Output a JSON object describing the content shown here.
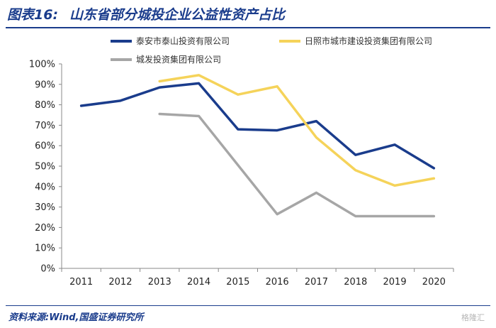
{
  "figure": {
    "label": "图表16:",
    "title": "山东省部分城投企业公益性资产占比"
  },
  "source": "资料来源:Wind,国盛证券研究所",
  "watermark": "格隆汇",
  "chart_data": {
    "type": "line",
    "title": "山东省部分城投企业公益性资产占比",
    "xlabel": "",
    "ylabel": "",
    "categories": [
      "2011",
      "2012",
      "2013",
      "2014",
      "2015",
      "2016",
      "2017",
      "2018",
      "2019",
      "2020"
    ],
    "ylim": [
      0,
      100
    ],
    "y_ticks": [
      0,
      10,
      20,
      30,
      40,
      50,
      60,
      70,
      80,
      90,
      100
    ],
    "y_tick_labels": [
      "0%",
      "10%",
      "20%",
      "30%",
      "40%",
      "50%",
      "60%",
      "70%",
      "80%",
      "90%",
      "100%"
    ],
    "grid": false,
    "legend_position": "top",
    "series": [
      {
        "name": "泰安市泰山投资有限公司",
        "color": "#1a3c8c",
        "values": [
          79.5,
          82,
          88.5,
          90.5,
          68,
          67.5,
          72,
          55.5,
          60.5,
          49
        ]
      },
      {
        "name": "日照市城市建设投资集团有限公司",
        "color": "#f5d35a",
        "values": [
          null,
          null,
          91.5,
          94.5,
          85,
          89,
          64,
          48,
          40.5,
          44
        ]
      },
      {
        "name": "城发投资集团有限公司",
        "color": "#a6a6a6",
        "values": [
          null,
          null,
          75.5,
          74.5,
          50.5,
          26.5,
          37,
          25.5,
          25.5,
          25.5
        ]
      }
    ]
  }
}
